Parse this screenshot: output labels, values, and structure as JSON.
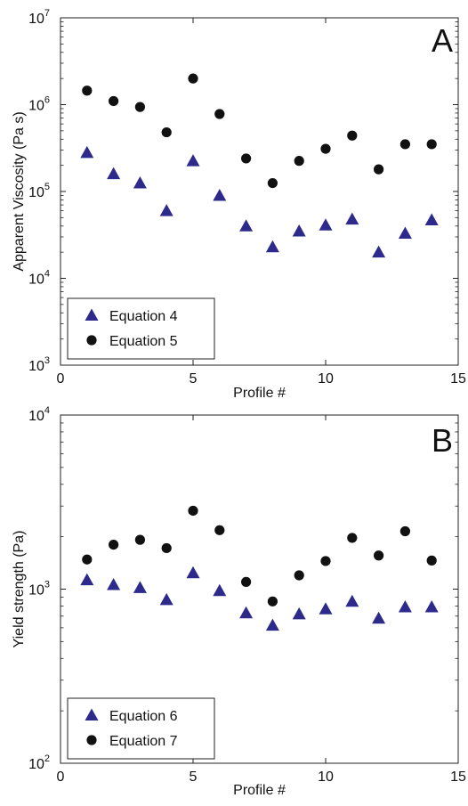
{
  "chart_data": [
    {
      "type": "scatter",
      "panel_label": "A",
      "xlabel": "Profile #",
      "ylabel": "Apparent Viscosity (Pa s)",
      "xlim": [
        0,
        15
      ],
      "ylim": [
        1000,
        10000000
      ],
      "yscale": "log",
      "x_ticks": [
        "0",
        "5",
        "10",
        "15"
      ],
      "y_ticks": [
        {
          "base": "10",
          "exp": "3"
        },
        {
          "base": "10",
          "exp": "4"
        },
        {
          "base": "10",
          "exp": "5"
        },
        {
          "base": "10",
          "exp": "6"
        },
        {
          "base": "10",
          "exp": "7"
        }
      ],
      "legend_position": "bottom-left",
      "series": [
        {
          "name": "Equation 4",
          "marker": "triangle",
          "color": "#2e2a8c",
          "x": [
            1,
            2,
            3,
            4,
            5,
            6,
            7,
            8,
            9,
            10,
            11,
            12,
            13,
            14
          ],
          "values": [
            280000,
            160000,
            125000,
            60000,
            225000,
            90000,
            40000,
            23000,
            35000,
            41000,
            48000,
            20000,
            33000,
            47000
          ]
        },
        {
          "name": "Equation 5",
          "marker": "circle",
          "color": "#111111",
          "x": [
            1,
            2,
            3,
            4,
            5,
            6,
            7,
            8,
            9,
            10,
            11,
            12,
            13,
            14
          ],
          "values": [
            1450000,
            1100000,
            940000,
            480000,
            2000000,
            780000,
            240000,
            125000,
            225000,
            310000,
            440000,
            180000,
            350000,
            350000
          ]
        }
      ]
    },
    {
      "type": "scatter",
      "panel_label": "B",
      "xlabel": "Profile #",
      "ylabel": "Yield strength (Pa)",
      "xlim": [
        0,
        15
      ],
      "ylim": [
        100,
        10000
      ],
      "yscale": "log",
      "x_ticks": [
        "0",
        "5",
        "10",
        "15"
      ],
      "y_ticks": [
        {
          "base": "10",
          "exp": "2"
        },
        {
          "base": "10",
          "exp": "3"
        },
        {
          "base": "10",
          "exp": "4"
        }
      ],
      "legend_position": "bottom-left",
      "series": [
        {
          "name": "Equation 6",
          "marker": "triangle",
          "color": "#2e2a8c",
          "x": [
            1,
            2,
            3,
            4,
            5,
            6,
            7,
            8,
            9,
            10,
            11,
            12,
            13,
            14
          ],
          "values": [
            1130,
            1060,
            1020,
            870,
            1240,
            980,
            730,
            620,
            720,
            770,
            850,
            680,
            790,
            790
          ]
        },
        {
          "name": "Equation 7",
          "marker": "circle",
          "color": "#111111",
          "x": [
            1,
            2,
            3,
            4,
            5,
            6,
            7,
            8,
            9,
            10,
            11,
            12,
            13,
            14
          ],
          "values": [
            1480,
            1800,
            1920,
            1720,
            2820,
            2180,
            1100,
            850,
            1200,
            1450,
            1970,
            1560,
            2150,
            1460
          ]
        }
      ]
    }
  ]
}
